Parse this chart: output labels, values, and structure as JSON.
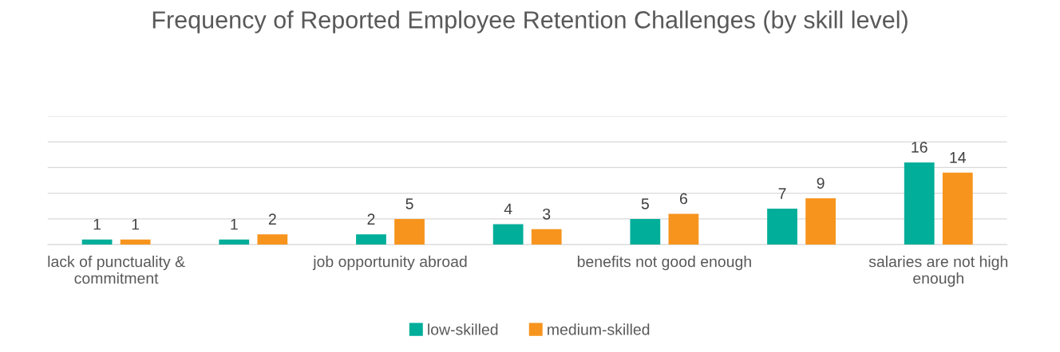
{
  "chart_data": {
    "type": "bar",
    "title": "Frequency of Reported Employee Retention Challenges (by skill level)",
    "categories": [
      "lack of punctuality & commitment",
      null,
      "job opportunity abroad",
      null,
      "benefits not good enough",
      null,
      "salaries are not high enough"
    ],
    "series": [
      {
        "name": "low-skilled",
        "color": "#00ae9a",
        "values": [
          1,
          1,
          2,
          4,
          5,
          7,
          16
        ]
      },
      {
        "name": "medium-skilled",
        "color": "#f7941d",
        "values": [
          1,
          2,
          5,
          3,
          6,
          9,
          14
        ]
      }
    ],
    "ylim": [
      0,
      25
    ],
    "yticks": [
      {
        "value": 0,
        "label": null
      },
      {
        "value": 5,
        "label": null
      },
      {
        "value": 10,
        "label": null
      },
      {
        "value": 15,
        "label": null
      },
      {
        "value": 20,
        "label": null
      },
      {
        "value": 25,
        "label": null
      }
    ],
    "tick_labels": "x",
    "grid": "y",
    "data_labels": true,
    "legend": "bottom"
  }
}
